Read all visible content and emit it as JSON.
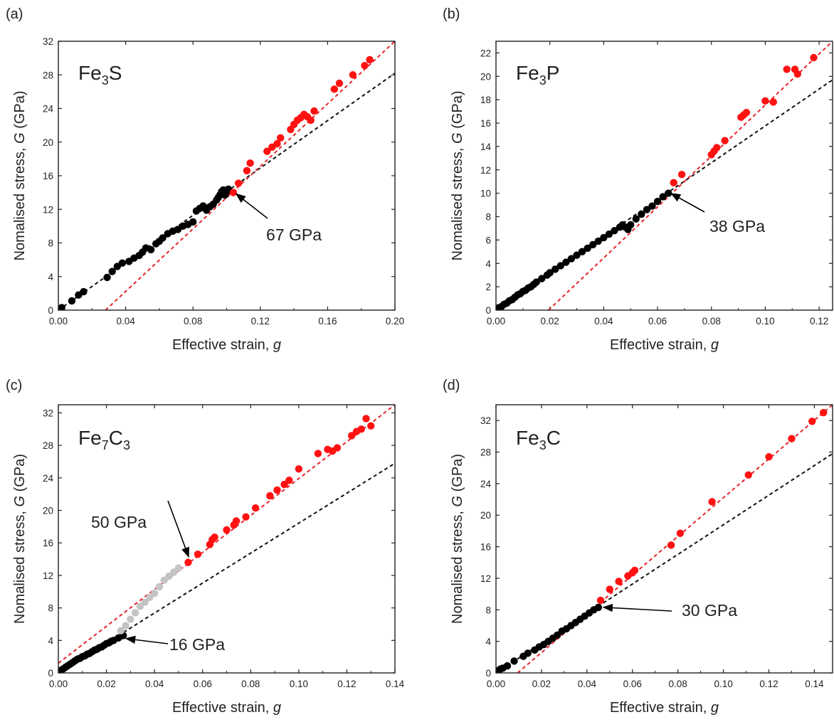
{
  "colors": {
    "black_points": "#000000",
    "red_points": "#ff1111",
    "grey_points": "#c4c4c4",
    "red_fit": "#e8232a",
    "black_fit": "#111111",
    "frame": "#222222"
  },
  "chart_data": [
    {
      "type": "scatter",
      "panel_label": "(a)",
      "sample": {
        "base": "Fe",
        "n1": "3",
        "el2": "S",
        "n2": ""
      },
      "xlabel_text": "Effective strain, ",
      "xlabel_var": "g",
      "ylabel_text": "Nomalised stress, ",
      "ylabel_var": "G",
      "ylabel_unit": " (GPa)",
      "xlim": [
        0.0,
        0.2
      ],
      "ylim": [
        0,
        32
      ],
      "xticks": [
        0.0,
        0.04,
        0.08,
        0.12,
        0.16,
        0.2
      ],
      "xtick_labels": [
        "0.00",
        "0.04",
        "0.08",
        "0.12",
        "0.16",
        "0.20"
      ],
      "yticks": [
        0,
        4,
        8,
        12,
        16,
        20,
        24,
        28,
        32
      ],
      "ytick_labels": [
        "0",
        "4",
        "8",
        "12",
        "16",
        "20",
        "24",
        "28",
        "32"
      ],
      "annotations": [
        {
          "text": "67 GPa",
          "at": [
            0.104,
            14.0
          ]
        }
      ],
      "fit_lines": [
        {
          "color": "black",
          "x": [
            0.0,
            0.2
          ],
          "y": [
            0.0,
            28.2
          ]
        },
        {
          "color": "red",
          "x": [
            0.028,
            0.2
          ],
          "y": [
            0.0,
            32.0
          ]
        }
      ],
      "series": [
        {
          "color": "black",
          "x": [
            0.002,
            0.008,
            0.012,
            0.015,
            0.029,
            0.032,
            0.035,
            0.038,
            0.042,
            0.045,
            0.048,
            0.05,
            0.052,
            0.055,
            0.058,
            0.06,
            0.062,
            0.065,
            0.068,
            0.071,
            0.074,
            0.077,
            0.08,
            0.082,
            0.084,
            0.086,
            0.088,
            0.09,
            0.092,
            0.094,
            0.095,
            0.096,
            0.097,
            0.098,
            0.099,
            0.1,
            0.101
          ],
          "y": [
            0.3,
            1.1,
            1.8,
            2.2,
            3.9,
            4.6,
            5.2,
            5.6,
            5.8,
            6.2,
            6.5,
            6.9,
            7.4,
            7.2,
            7.9,
            8.2,
            8.6,
            9.1,
            9.4,
            9.6,
            10.0,
            10.2,
            10.5,
            11.8,
            12.1,
            12.4,
            11.9,
            12.3,
            12.6,
            13.1,
            13.4,
            13.7,
            14.1,
            14.3,
            13.7,
            14.1,
            14.4
          ]
        },
        {
          "color": "red",
          "x": [
            0.104,
            0.107,
            0.112,
            0.114,
            0.124,
            0.127,
            0.13,
            0.132,
            0.138,
            0.14,
            0.142,
            0.144,
            0.146,
            0.148,
            0.15,
            0.152,
            0.164,
            0.167,
            0.175,
            0.182,
            0.185
          ],
          "y": [
            14.0,
            15.1,
            16.6,
            17.5,
            18.9,
            19.4,
            19.8,
            20.5,
            21.5,
            22.1,
            22.6,
            22.9,
            23.3,
            23.0,
            22.6,
            23.7,
            26.3,
            27.0,
            28.0,
            29.1,
            29.8
          ]
        }
      ]
    },
    {
      "type": "scatter",
      "panel_label": "(b)",
      "sample": {
        "base": "Fe",
        "n1": "3",
        "el2": "P",
        "n2": ""
      },
      "xlabel_text": "Effective strain, ",
      "xlabel_var": "g",
      "ylabel_text": "Nomalised stress, ",
      "ylabel_var": "G",
      "ylabel_unit": " (GPa)",
      "xlim": [
        0.0,
        0.125
      ],
      "ylim": [
        0,
        23
      ],
      "xticks": [
        0.0,
        0.02,
        0.04,
        0.06,
        0.08,
        0.1,
        0.12
      ],
      "xtick_labels": [
        "0.00",
        "0.02",
        "0.04",
        "0.06",
        "0.08",
        "0.10",
        "0.12"
      ],
      "yticks": [
        0,
        2,
        4,
        6,
        8,
        10,
        12,
        14,
        16,
        18,
        20,
        22
      ],
      "ytick_labels": [
        "0",
        "2",
        "4",
        "6",
        "8",
        "10",
        "12",
        "14",
        "16",
        "18",
        "20",
        "22"
      ],
      "annotations": [
        {
          "text": "38 GPa",
          "at": [
            0.064,
            10.1
          ]
        }
      ],
      "fit_lines": [
        {
          "color": "black",
          "x": [
            0.0,
            0.125
          ],
          "y": [
            0.0,
            19.7
          ]
        },
        {
          "color": "red",
          "x": [
            0.0195,
            0.125
          ],
          "y": [
            0.0,
            23.0
          ]
        }
      ],
      "series": [
        {
          "color": "black",
          "x": [
            0.001,
            0.002,
            0.003,
            0.004,
            0.005,
            0.006,
            0.007,
            0.008,
            0.009,
            0.01,
            0.011,
            0.012,
            0.013,
            0.014,
            0.015,
            0.017,
            0.019,
            0.02,
            0.022,
            0.024,
            0.026,
            0.028,
            0.03,
            0.032,
            0.034,
            0.036,
            0.038,
            0.04,
            0.042,
            0.044,
            0.046,
            0.047,
            0.048,
            0.049,
            0.05,
            0.052,
            0.054,
            0.056,
            0.058,
            0.06,
            0.062,
            0.064
          ],
          "y": [
            0.2,
            0.3,
            0.5,
            0.6,
            0.8,
            0.9,
            1.1,
            1.3,
            1.4,
            1.6,
            1.7,
            1.9,
            2.0,
            2.2,
            2.4,
            2.7,
            3.0,
            3.2,
            3.5,
            3.8,
            4.1,
            4.4,
            4.7,
            5.0,
            5.3,
            5.6,
            5.9,
            6.2,
            6.5,
            6.8,
            7.1,
            7.3,
            7.1,
            6.9,
            7.3,
            7.8,
            8.2,
            8.6,
            8.9,
            9.3,
            9.7,
            10.0
          ]
        },
        {
          "color": "red",
          "x": [
            0.066,
            0.069,
            0.08,
            0.081,
            0.082,
            0.085,
            0.091,
            0.092,
            0.093,
            0.1,
            0.103,
            0.108,
            0.111,
            0.112,
            0.118
          ],
          "y": [
            10.9,
            11.6,
            13.3,
            13.6,
            13.9,
            14.5,
            16.5,
            16.7,
            16.9,
            17.9,
            17.8,
            20.6,
            20.6,
            20.2,
            21.6
          ]
        }
      ]
    },
    {
      "type": "scatter",
      "panel_label": "(c)",
      "sample": {
        "base": "Fe",
        "n1": "7",
        "el2": "C",
        "n2": "3"
      },
      "xlabel_text": "Effective strain, ",
      "xlabel_var": "g",
      "ylabel_text": "Nomalised stress, ",
      "ylabel_var": "G",
      "ylabel_unit": " (GPa)",
      "xlim": [
        0.0,
        0.14
      ],
      "ylim": [
        0,
        33
      ],
      "xticks": [
        0.0,
        0.02,
        0.04,
        0.06,
        0.08,
        0.1,
        0.12,
        0.14
      ],
      "xtick_labels": [
        "0.00",
        "0.02",
        "0.04",
        "0.06",
        "0.08",
        "0.10",
        "0.12",
        "0.14"
      ],
      "yticks": [
        0,
        4,
        8,
        12,
        16,
        20,
        24,
        28,
        32
      ],
      "ytick_labels": [
        "0",
        "4",
        "8",
        "12",
        "16",
        "20",
        "24",
        "28",
        "32"
      ],
      "annotations": [
        {
          "text": "50 GPa",
          "at": [
            0.053,
            13.6
          ]
        },
        {
          "text": "16 GPa",
          "at": [
            0.027,
            4.4
          ]
        }
      ],
      "fit_lines": [
        {
          "color": "black",
          "x": [
            0.0,
            0.14
          ],
          "y": [
            0.0,
            25.8
          ]
        },
        {
          "color": "red",
          "x": [
            0.0,
            0.14
          ],
          "y": [
            1.2,
            33.0
          ]
        }
      ],
      "series": [
        {
          "color": "black",
          "x": [
            0.001,
            0.002,
            0.003,
            0.004,
            0.005,
            0.006,
            0.007,
            0.008,
            0.009,
            0.01,
            0.011,
            0.012,
            0.013,
            0.014,
            0.015,
            0.016,
            0.017,
            0.018,
            0.019,
            0.02,
            0.021,
            0.022,
            0.023,
            0.025,
            0.027
          ],
          "y": [
            0.3,
            0.5,
            0.7,
            0.9,
            1.1,
            1.3,
            1.5,
            1.7,
            1.8,
            2.0,
            2.1,
            2.3,
            2.4,
            2.6,
            2.8,
            2.9,
            3.1,
            3.2,
            3.4,
            3.6,
            3.7,
            3.9,
            4.0,
            4.3,
            4.6
          ]
        },
        {
          "color": "grey",
          "x": [
            0.026,
            0.028,
            0.03,
            0.032,
            0.034,
            0.036,
            0.038,
            0.04,
            0.042,
            0.044,
            0.046,
            0.048,
            0.05
          ],
          "y": [
            5.2,
            5.8,
            6.6,
            7.4,
            8.2,
            8.7,
            9.3,
            9.8,
            10.6,
            11.4,
            11.9,
            12.4,
            12.9
          ]
        },
        {
          "color": "red",
          "x": [
            0.054,
            0.058,
            0.063,
            0.064,
            0.065,
            0.07,
            0.073,
            0.074,
            0.078,
            0.082,
            0.088,
            0.091,
            0.094,
            0.096,
            0.1,
            0.108,
            0.112,
            0.114,
            0.116,
            0.122,
            0.124,
            0.126,
            0.128,
            0.13
          ],
          "y": [
            13.6,
            14.6,
            15.8,
            16.4,
            16.7,
            17.6,
            18.2,
            18.7,
            19.2,
            20.3,
            21.8,
            22.5,
            23.2,
            23.7,
            25.1,
            27.0,
            27.5,
            27.3,
            27.7,
            29.2,
            29.7,
            30.0,
            31.3,
            30.4
          ]
        }
      ]
    },
    {
      "type": "scatter",
      "panel_label": "(d)",
      "sample": {
        "base": "Fe",
        "n1": "3",
        "el2": "C",
        "n2": ""
      },
      "xlabel_text": "Effective strain, ",
      "xlabel_var": "g",
      "ylabel_text": "Nomalised stress, ",
      "ylabel_var": "G",
      "ylabel_unit": " (GPa)",
      "xlim": [
        0.0,
        0.148
      ],
      "ylim": [
        0,
        34
      ],
      "xticks": [
        0.0,
        0.02,
        0.04,
        0.06,
        0.08,
        0.1,
        0.12,
        0.14
      ],
      "xtick_labels": [
        "0.00",
        "0.02",
        "0.04",
        "0.06",
        "0.08",
        "0.10",
        "0.12",
        "0.14"
      ],
      "yticks": [
        0,
        4,
        8,
        12,
        16,
        20,
        24,
        28,
        32
      ],
      "ytick_labels": [
        "0",
        "4",
        "8",
        "12",
        "16",
        "20",
        "24",
        "28",
        "32"
      ],
      "annotations": [
        {
          "text": "30 GPa",
          "at": [
            0.046,
            8.5
          ]
        }
      ],
      "fit_lines": [
        {
          "color": "black",
          "x": [
            0.0,
            0.148
          ],
          "y": [
            0.0,
            27.8
          ]
        },
        {
          "color": "red",
          "x": [
            0.0095,
            0.148
          ],
          "y": [
            0.0,
            34.0
          ]
        }
      ],
      "series": [
        {
          "color": "black",
          "x": [
            0.001,
            0.002,
            0.003,
            0.005,
            0.008,
            0.012,
            0.014,
            0.017,
            0.019,
            0.021,
            0.023,
            0.025,
            0.027,
            0.029,
            0.031,
            0.033,
            0.035,
            0.037,
            0.039,
            0.041,
            0.043,
            0.045
          ],
          "y": [
            0.3,
            0.5,
            0.6,
            0.9,
            1.5,
            2.1,
            2.5,
            2.9,
            3.3,
            3.6,
            4.0,
            4.4,
            4.8,
            5.3,
            5.6,
            6.0,
            6.4,
            6.8,
            7.2,
            7.6,
            8.0,
            8.3
          ]
        },
        {
          "color": "red",
          "x": [
            0.046,
            0.05,
            0.054,
            0.058,
            0.06,
            0.061,
            0.077,
            0.081,
            0.095,
            0.111,
            0.12,
            0.13,
            0.139,
            0.144
          ],
          "y": [
            9.2,
            10.6,
            11.6,
            12.3,
            12.7,
            13.0,
            16.2,
            17.7,
            21.7,
            25.1,
            27.4,
            29.7,
            31.9,
            33.0
          ]
        }
      ]
    }
  ]
}
